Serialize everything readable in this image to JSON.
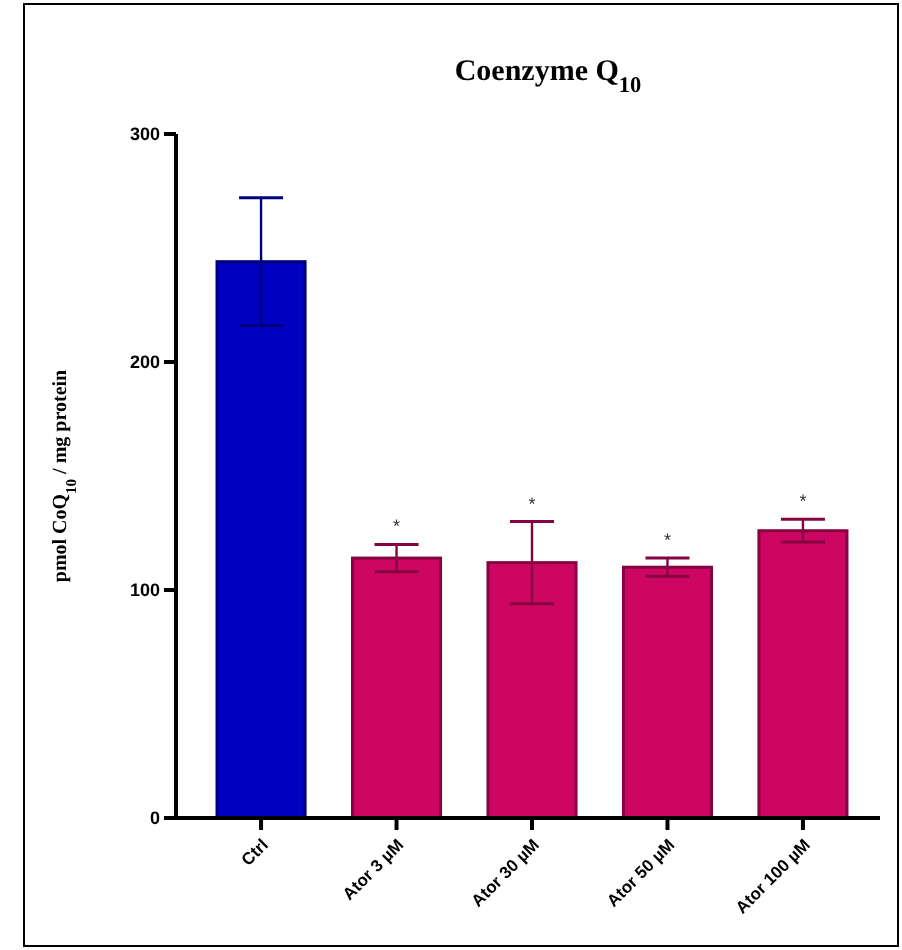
{
  "chart_data": {
    "type": "bar",
    "title": "Coenzyme Q$_{10}$",
    "ylabel": "pmol CoQ$_{10}$ / mg protein",
    "categories": [
      "Ctrl",
      "Ator 3 µM",
      "Ator 30 µM",
      "Ator 50 µM",
      "Ator 100 µM"
    ],
    "values": [
      244,
      114,
      112,
      110,
      126
    ],
    "colors": [
      "#0000c0",
      "#cc0662",
      "#cc0662",
      "#cc0662",
      "#cc0662"
    ],
    "errors": [
      28,
      6,
      18,
      4,
      5
    ],
    "ylim": [
      0,
      300
    ],
    "yticks": [
      0,
      100,
      200,
      300
    ],
    "grid": false,
    "annotations": [
      {
        "text": "*",
        "x": "Ator 3 µM",
        "y": 120
      },
      {
        "text": "*",
        "x": "Ator 30 µM",
        "y": 130
      },
      {
        "text": "*",
        "x": "Ator 50 µM",
        "y": 114
      },
      {
        "text": "*",
        "x": "Ator 100 µM",
        "y": 131
      }
    ]
  }
}
